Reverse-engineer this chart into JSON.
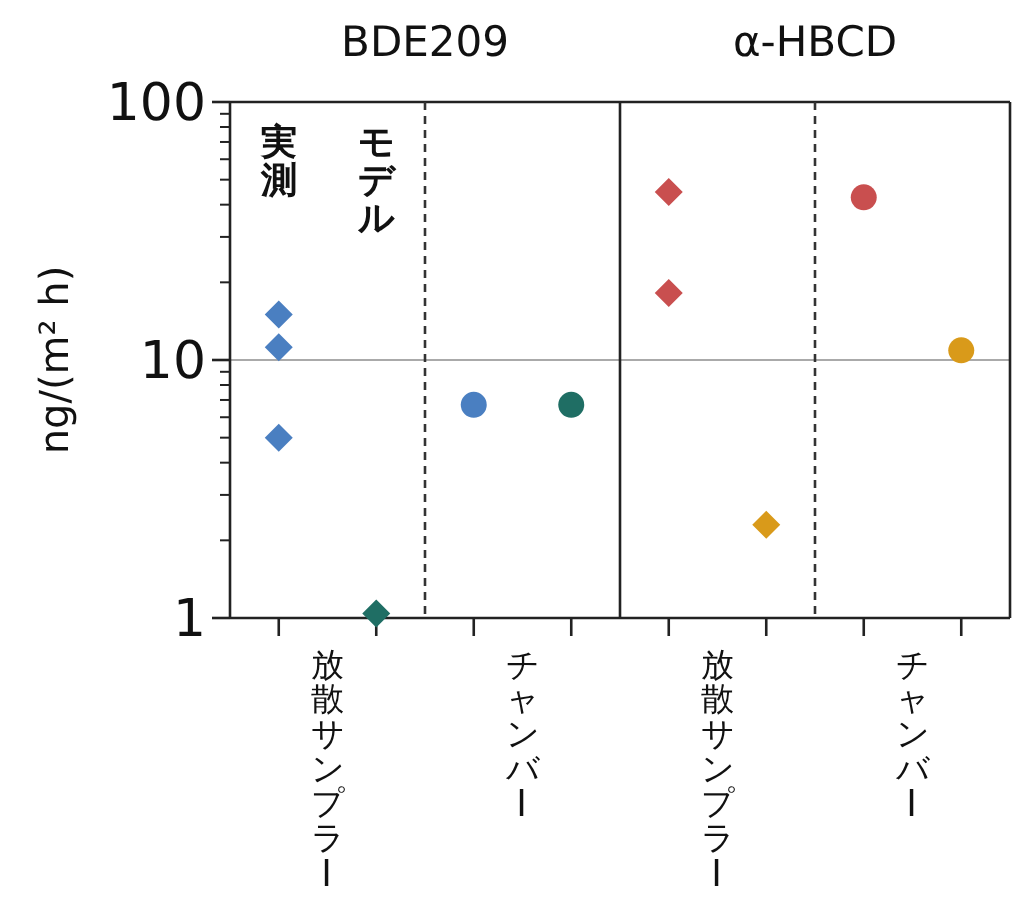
{
  "chart_data": [
    {
      "type": "scatter",
      "title": "BDE209",
      "ylabel": "ng/(m² h)",
      "categories": [
        "放散サンプラー"
      ],
      "ylim": [
        1,
        100
      ],
      "yticks": [
        1,
        10,
        100
      ],
      "log": "y",
      "ref_lines": [
        {
          "axis": "y",
          "value": 10,
          "color": "#aaaaaa"
        }
      ],
      "annotations": [
        "実測",
        "モデル"
      ],
      "series": [
        {
          "x": [
            "放散サンプラー",
            "放散サンプラー",
            "放散サンプラー"
          ],
          "values": [
            15,
            11.2,
            5
          ],
          "color": "#4a7fc1",
          "marker": "diamond"
        },
        {
          "x": [
            "放散サンプラー"
          ],
          "values": [
            1.04
          ],
          "color": "#1f6e64",
          "marker": "diamond"
        }
      ]
    },
    {
      "type": "scatter",
      "categories": [
        "チャンバー"
      ],
      "ylim": [
        1,
        100
      ],
      "log": "y",
      "ref_lines": [
        {
          "axis": "y",
          "value": 10,
          "color": "#aaaaaa"
        }
      ],
      "tick_labels": "x",
      "series": [
        {
          "x": [
            "チャンバー"
          ],
          "values": [
            6.7
          ],
          "color": "#4a7fc1",
          "marker": "circle"
        },
        {
          "x": [
            "チャンバー"
          ],
          "values": [
            6.7
          ],
          "color": "#1f6e64",
          "marker": "circle"
        }
      ]
    },
    {
      "type": "scatter",
      "title": "α-HBCD",
      "categories": [
        "放散サンプラー"
      ],
      "ylim": [
        1,
        100
      ],
      "log": "y",
      "ref_lines": [
        {
          "axis": "y",
          "value": 10,
          "color": "#aaaaaa"
        }
      ],
      "tick_labels": "x",
      "series": [
        {
          "x": [
            "放散サンプラー",
            "放散サンプラー"
          ],
          "values": [
            44.8,
            18.2
          ],
          "color": "#c94f4f",
          "marker": "diamond"
        },
        {
          "x": [
            "放散サンプラー"
          ],
          "values": [
            2.3
          ],
          "color": "#d99a1a",
          "marker": "diamond"
        }
      ]
    },
    {
      "type": "scatter",
      "categories": [
        "チャンバー"
      ],
      "ylim": [
        1,
        100
      ],
      "log": "y",
      "ref_lines": [
        {
          "axis": "y",
          "value": 10,
          "color": "#aaaaaa"
        }
      ],
      "tick_labels": "x",
      "series": [
        {
          "x": [
            "チャンバー"
          ],
          "values": [
            42.7
          ],
          "color": "#c94f4f",
          "marker": "circle"
        },
        {
          "x": [
            "チャンバー"
          ],
          "values": [
            10.9
          ],
          "color": "#d99a1a",
          "marker": "circle"
        }
      ]
    }
  ]
}
